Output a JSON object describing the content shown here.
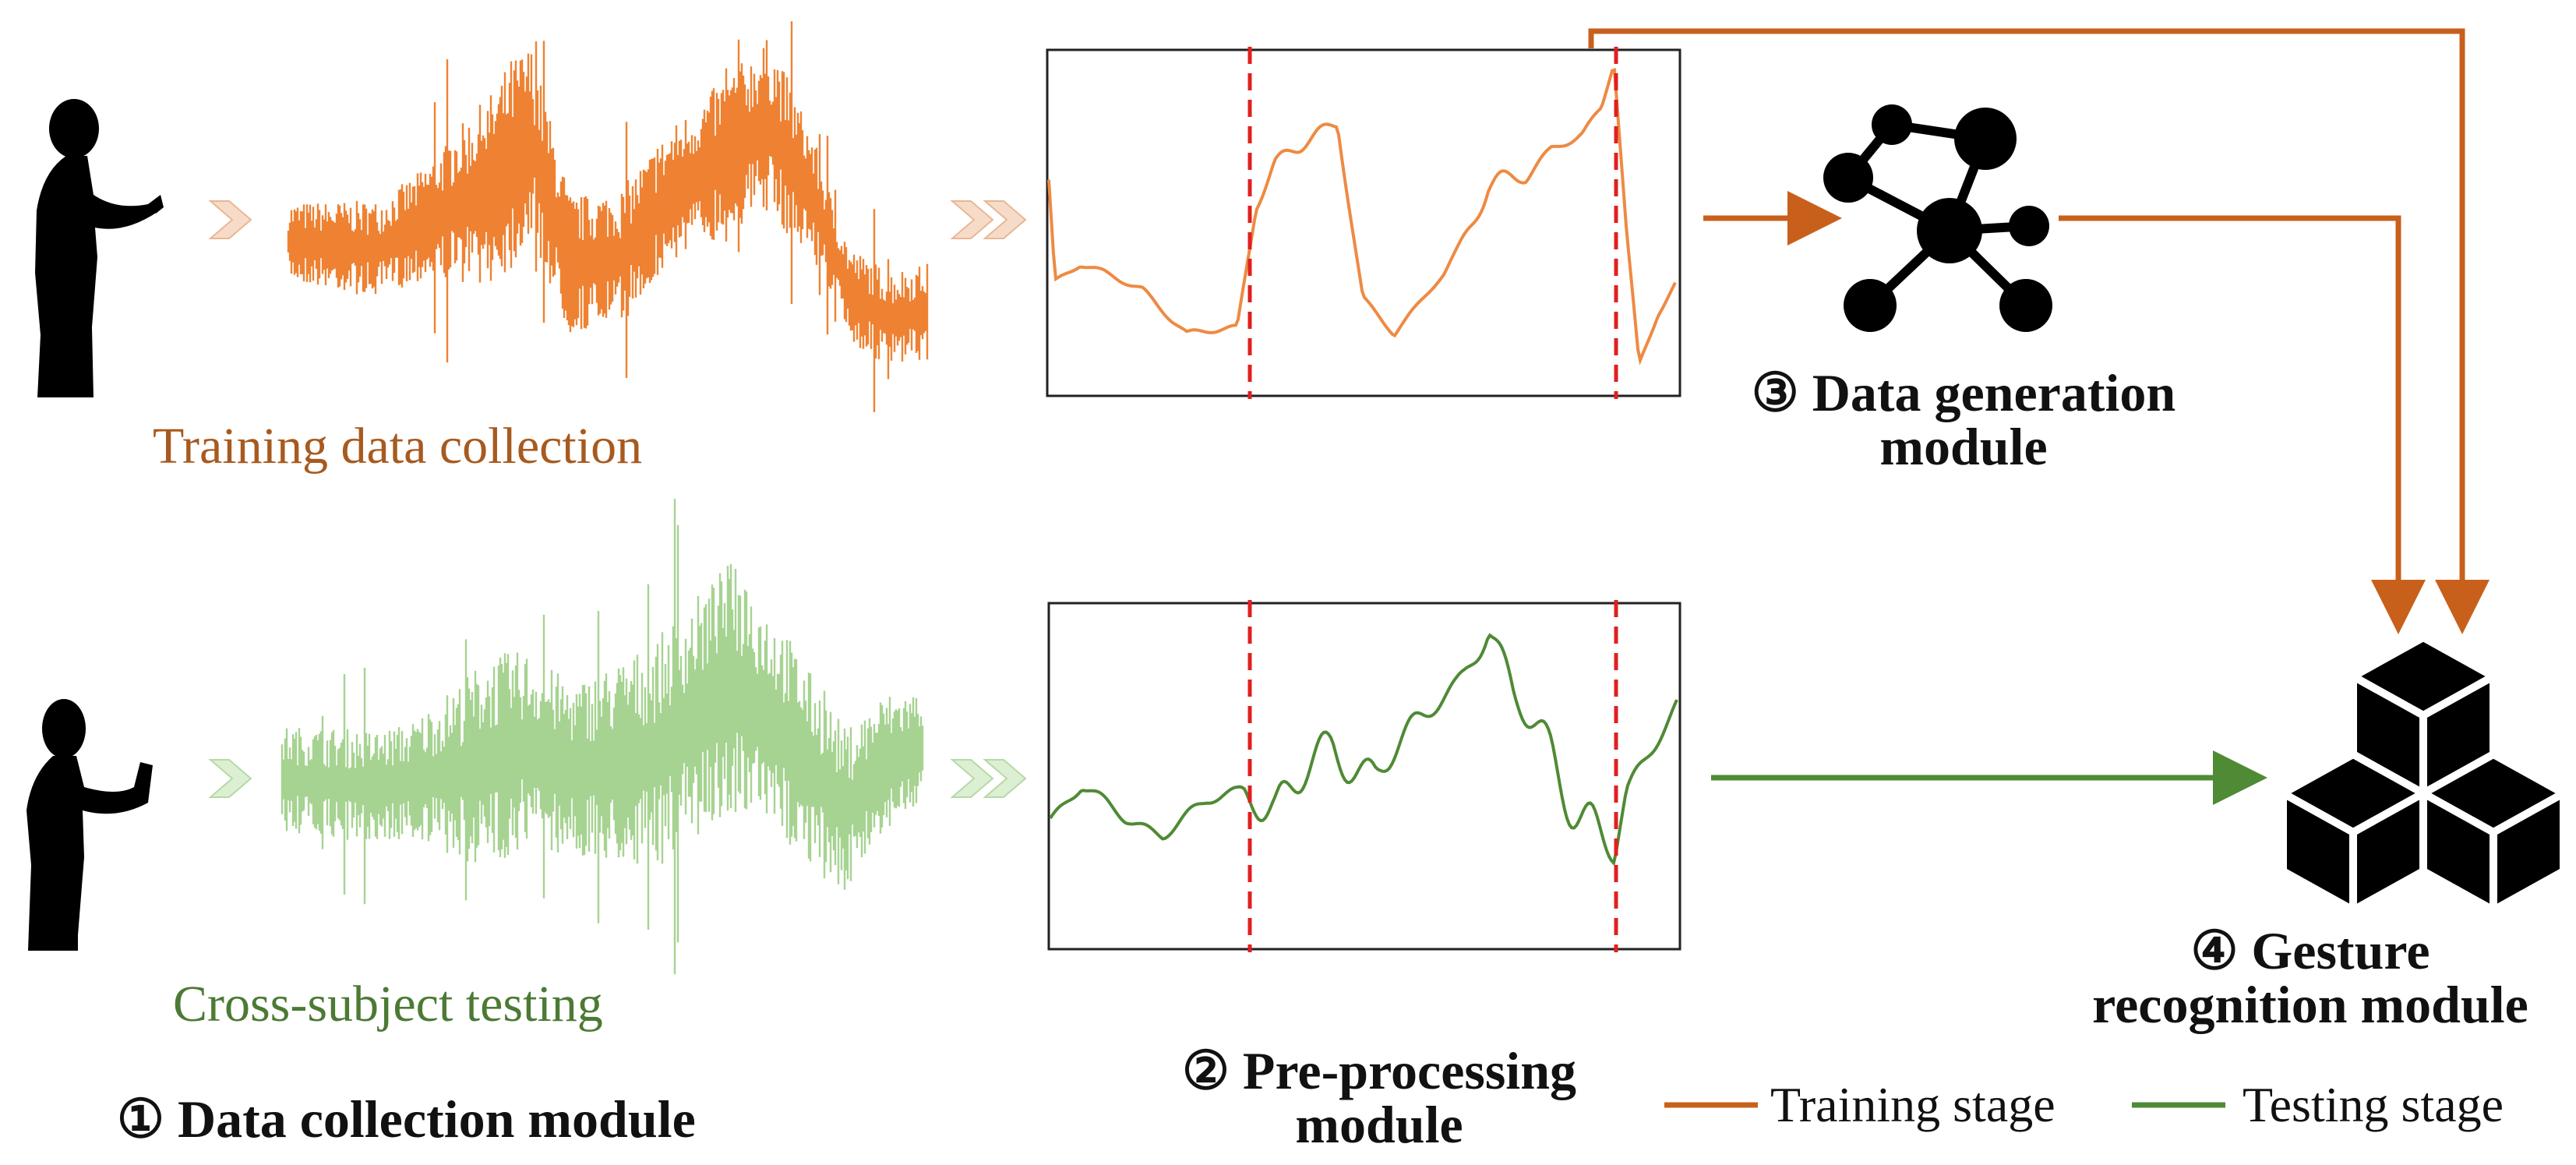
{
  "colors": {
    "training": "#c8601c",
    "training_signal": "#ee8232",
    "training_caption": "#a75a1f",
    "testing": "#4f8a35",
    "testing_signal": "#a6d391",
    "testing_caption": "#4c7a34",
    "boundary": "#e0201e",
    "ink": "#000000"
  },
  "captions": {
    "training": "Training data collection",
    "testing": "Cross-subject testing"
  },
  "modules": {
    "collection": "① Data collection module",
    "preprocessing": [
      "② Pre-processing",
      "module"
    ],
    "generation": [
      "③ Data generation",
      "module"
    ],
    "recognition": [
      "④ Gesture",
      "recognition module"
    ]
  },
  "legend": {
    "training": "Training stage",
    "testing": "Testing stage"
  },
  "icons": {
    "person_top": "person-gesturing-icon",
    "person_bottom": "person-hand-raised-icon",
    "network": "network-graph-icon",
    "cubes": "stacked-cubes-icon",
    "chevron_single": "chevron-right-icon",
    "chevron_double": "double-chevron-right-icon"
  }
}
